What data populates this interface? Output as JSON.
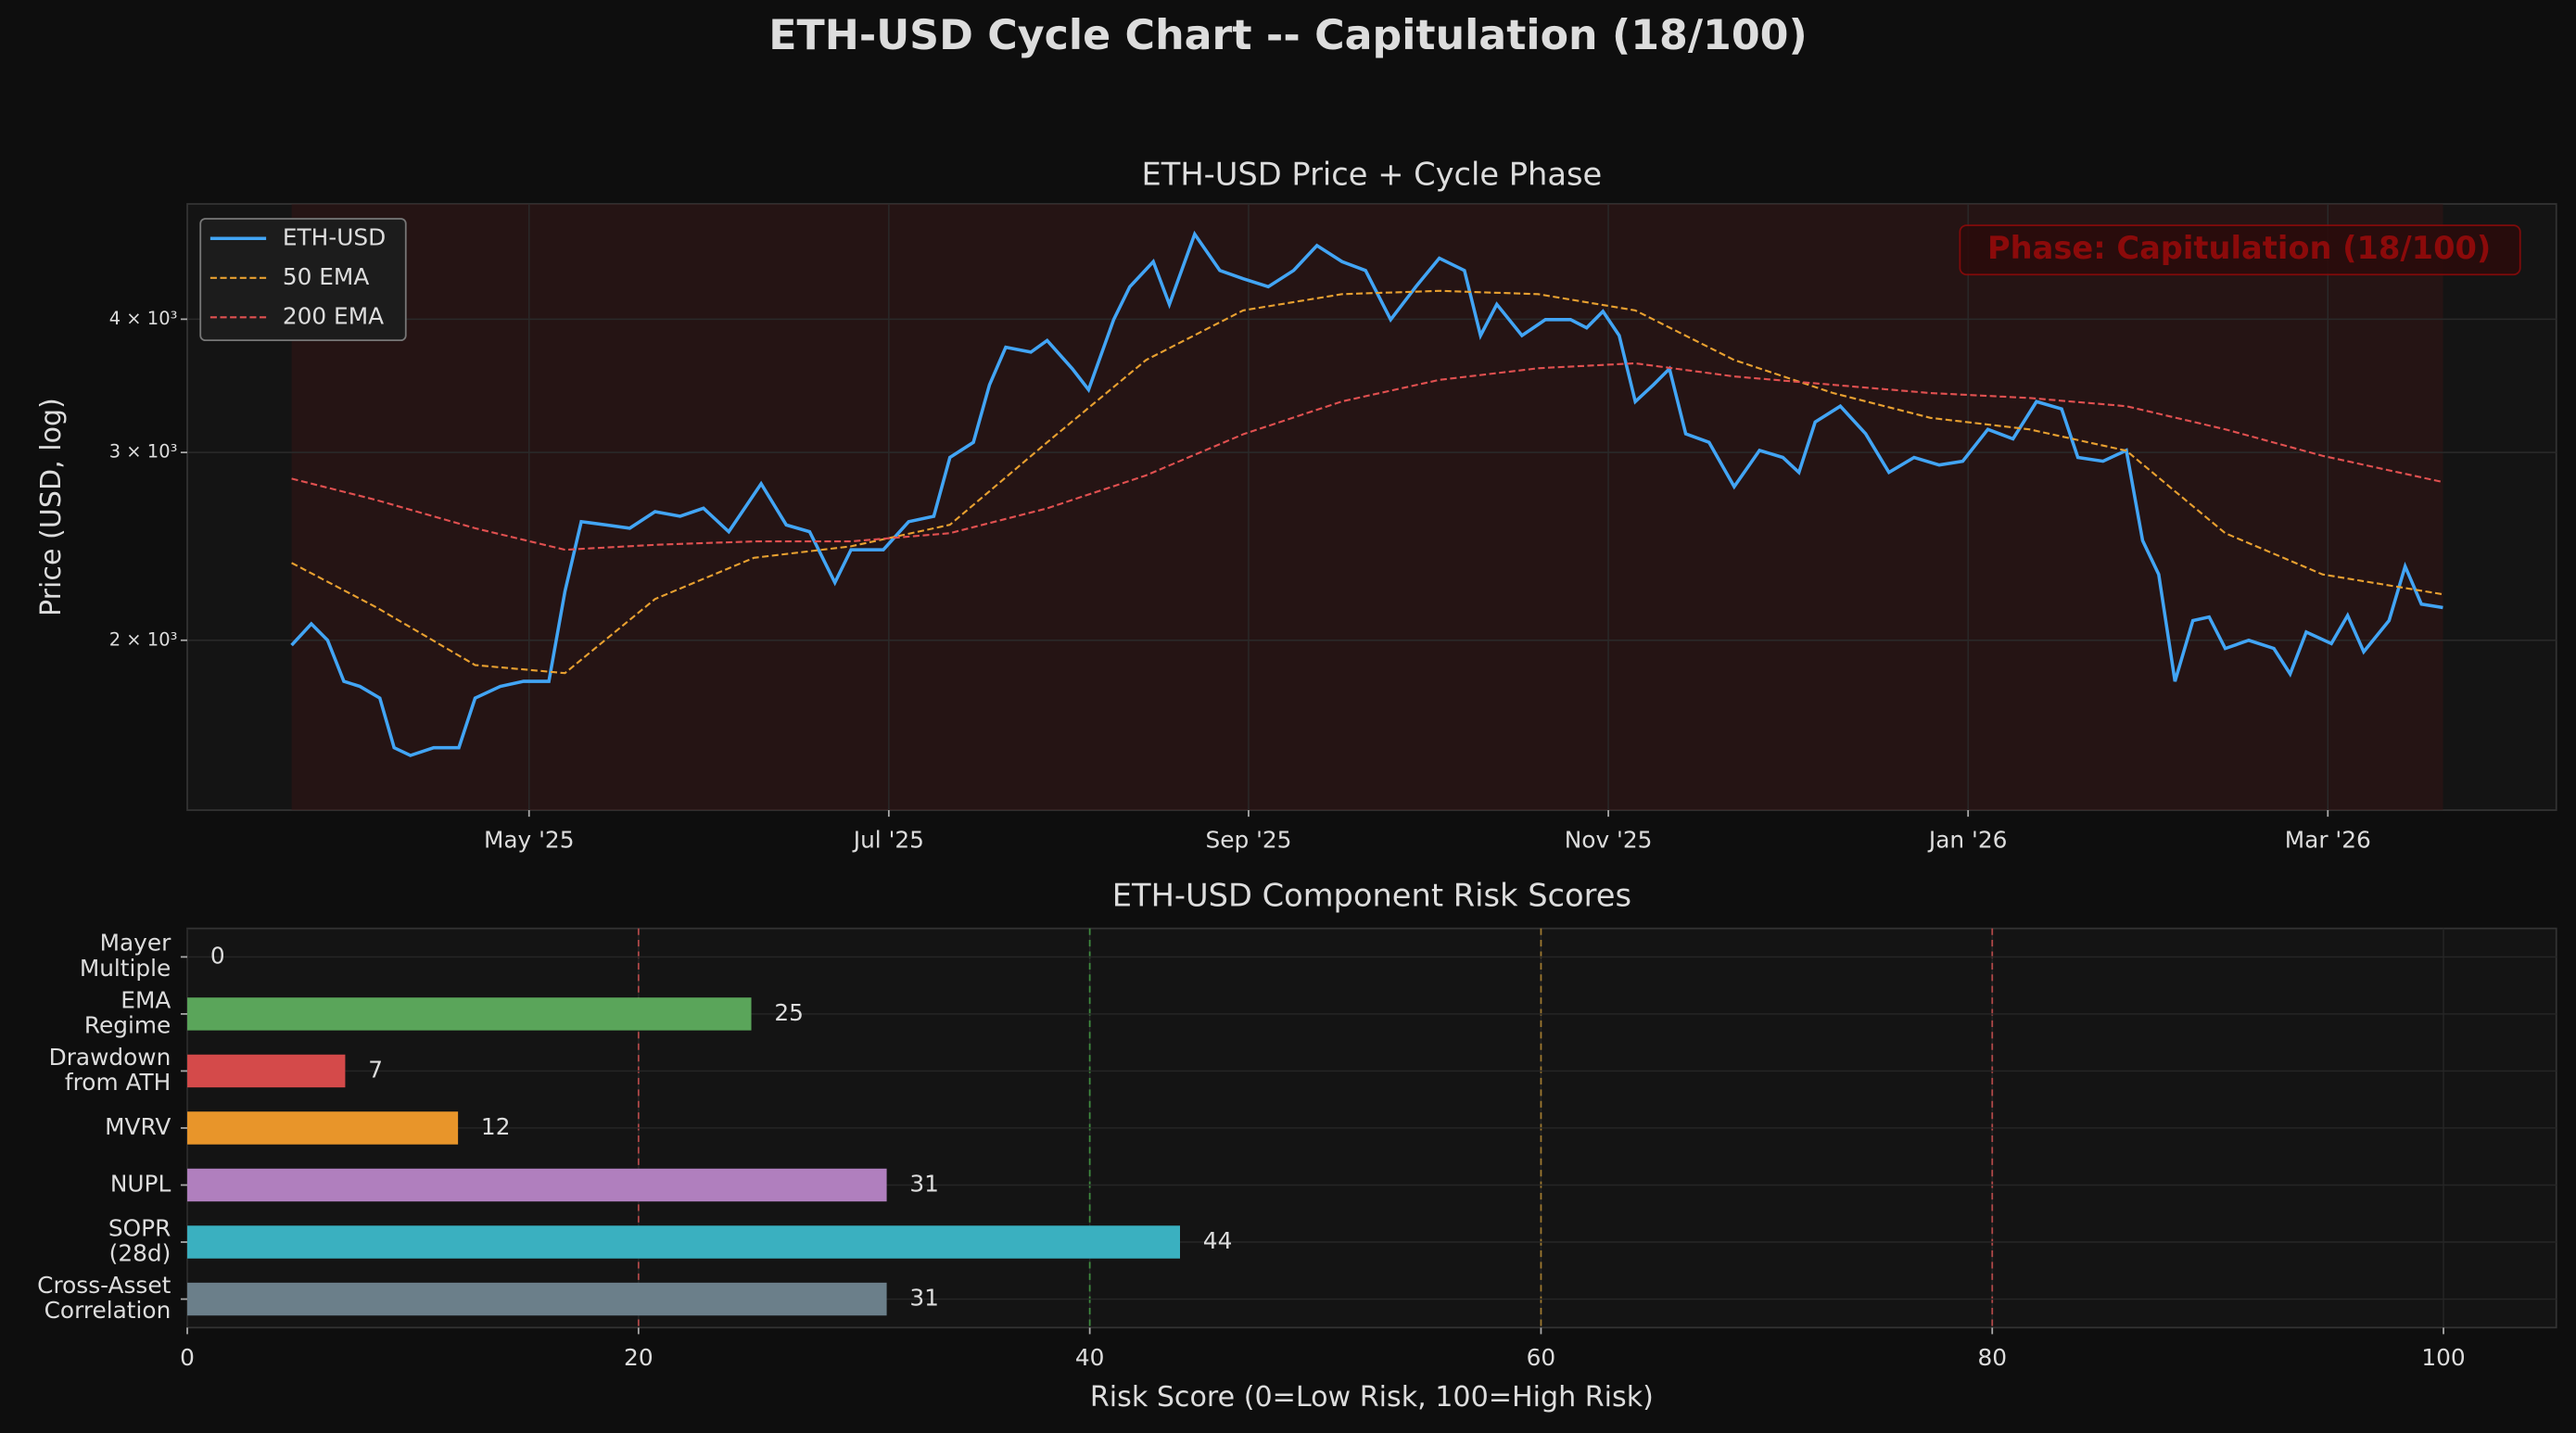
{
  "title": "ETH-USD Cycle Chart -- Capitulation (18/100)",
  "chart_data": [
    {
      "type": "line",
      "title": "ETH-USD Price + Cycle Phase",
      "ylabel": "Price (USD, log)",
      "yscale": "log",
      "grid": true,
      "legend": "upper left",
      "annotation": "Phase: Capitulation (18/100)",
      "annotation_color": "#8b0a0a",
      "xlim": [
        3.1,
        16.27
      ],
      "ylim": [
        1386,
        5130
      ],
      "xticks": [
        {
          "value": 5,
          "label": "May '25"
        },
        {
          "value": 7,
          "label": "Jul '25"
        },
        {
          "value": 9,
          "label": "Sep '25"
        },
        {
          "value": 11,
          "label": "Nov '25"
        },
        {
          "value": 13,
          "label": "Jan '26"
        },
        {
          "value": 15,
          "label": "Mar '26"
        }
      ],
      "yticks": [
        {
          "value": 2000,
          "label": "2 × 10³"
        },
        {
          "value": 3000,
          "label": "3 × 10³"
        },
        {
          "value": 4000,
          "label": "4 × 10³"
        }
      ],
      "series": [
        {
          "name": "ETH-USD",
          "color": "#42a5f5",
          "style": "solid",
          "x": [
            3.68,
            3.79,
            3.88,
            3.97,
            4.06,
            4.17,
            4.25,
            4.34,
            4.47,
            4.61,
            4.7,
            4.84,
            4.97,
            5.11,
            5.2,
            5.29,
            5.43,
            5.56,
            5.7,
            5.84,
            5.97,
            6.11,
            6.29,
            6.43,
            6.56,
            6.7,
            6.79,
            6.97,
            7.11,
            7.25,
            7.34,
            7.47,
            7.56,
            7.65,
            7.79,
            7.88,
            8.02,
            8.11,
            8.25,
            8.34,
            8.47,
            8.56,
            8.7,
            8.84,
            8.97,
            9.11,
            9.25,
            9.38,
            9.52,
            9.65,
            9.79,
            9.93,
            10.06,
            10.2,
            10.29,
            10.38,
            10.52,
            10.65,
            10.79,
            10.88,
            10.97,
            11.06,
            11.15,
            11.25,
            11.34,
            11.43,
            11.56,
            11.7,
            11.84,
            11.97,
            12.06,
            12.15,
            12.29,
            12.43,
            12.56,
            12.7,
            12.84,
            12.97,
            13.11,
            13.25,
            13.38,
            13.52,
            13.61,
            13.75,
            13.88,
            13.97,
            14.06,
            14.15,
            14.25,
            14.34,
            14.43,
            14.56,
            14.7,
            14.79,
            14.88,
            15.02,
            15.11,
            15.2,
            15.34,
            15.43,
            15.52,
            15.64
          ],
          "values": [
            1979,
            2072,
            2000,
            1830,
            1810,
            1765,
            1586,
            1560,
            1586,
            1586,
            1765,
            1810,
            1830,
            1830,
            2223,
            2584,
            2565,
            2547,
            2640,
            2614,
            2660,
            2528,
            2804,
            2565,
            2528,
            2265,
            2432,
            2432,
            2584,
            2614,
            2968,
            3066,
            3472,
            3766,
            3726,
            3820,
            3595,
            3435,
            3997,
            4290,
            4530,
            4130,
            4806,
            4444,
            4365,
            4290,
            4444,
            4690,
            4530,
            4444,
            3997,
            4290,
            4563,
            4444,
            3862,
            4130,
            3862,
            3997,
            3997,
            3926,
            4068,
            3862,
            3348,
            3472,
            3595,
            3124,
            3066,
            2786,
            3014,
            2968,
            2874,
            3204,
            3315,
            3124,
            2874,
            2968,
            2920,
            2944,
            3154,
            3089,
            3348,
            3295,
            2968,
            2944,
            3014,
            2480,
            2306,
            1830,
            2087,
            2103,
            1965,
            2000,
            1965,
            1860,
            2036,
            1986,
            2110,
            1951,
            2087,
            2346,
            2162,
            2146
          ]
        },
        {
          "name": "50 EMA",
          "color": "#e8a030",
          "style": "dashed",
          "x": [
            3.68,
            4.15,
            4.7,
            5.2,
            5.7,
            6.25,
            6.79,
            7.34,
            7.88,
            8.43,
            8.97,
            9.52,
            10.06,
            10.61,
            11.15,
            11.7,
            12.25,
            12.79,
            13.34,
            13.88,
            14.43,
            14.97,
            15.64
          ],
          "values": [
            2364,
            2148,
            1896,
            1863,
            2186,
            2390,
            2450,
            2566,
            3066,
            3662,
            4076,
            4222,
            4253,
            4222,
            4076,
            3662,
            3411,
            3233,
            3154,
            3011,
            2520,
            2306,
            2209
          ]
        },
        {
          "name": "200 EMA",
          "color": "#e05050",
          "style": "dashed",
          "x": [
            3.68,
            4.15,
            4.7,
            5.2,
            5.7,
            6.25,
            6.79,
            7.34,
            7.88,
            8.43,
            8.97,
            9.52,
            10.06,
            10.61,
            11.15,
            11.7,
            12.25,
            12.79,
            13.34,
            13.88,
            14.43,
            14.97,
            15.64
          ],
          "values": [
            2835,
            2707,
            2547,
            2432,
            2458,
            2476,
            2476,
            2520,
            2659,
            2855,
            3120,
            3350,
            3509,
            3598,
            3637,
            3535,
            3472,
            3411,
            3375,
            3315,
            3154,
            2979,
            2814
          ]
        }
      ]
    },
    {
      "type": "barh",
      "title": "ETH-USD Component Risk Scores",
      "xlabel": "Risk Score (0=Low Risk, 100=High Risk)",
      "grid": true,
      "categories": [
        "Mayer\nMultiple",
        "EMA\nRegime",
        "Drawdown\nfrom ATH",
        "MVRV",
        "NUPL",
        "SOPR\n(28d)",
        "Cross-Asset\nCorrelation"
      ],
      "values": [
        0,
        25,
        7,
        12,
        31,
        44,
        31
      ],
      "colors": [
        "#888888",
        "#5aa55a",
        "#d44a4a",
        "#e8952a",
        "#b07fbe",
        "#3ab0c0",
        "#6b7f8a"
      ],
      "xlim": [
        0,
        105
      ],
      "xticks": [
        0,
        20,
        40,
        60,
        80,
        100
      ],
      "reference_lines": [
        {
          "value": 20,
          "color": "#b04848"
        },
        {
          "value": 40,
          "color": "#3f8a3f"
        },
        {
          "value": 60,
          "color": "#a07a30"
        },
        {
          "value": 80,
          "color": "#b04848"
        }
      ]
    }
  ]
}
